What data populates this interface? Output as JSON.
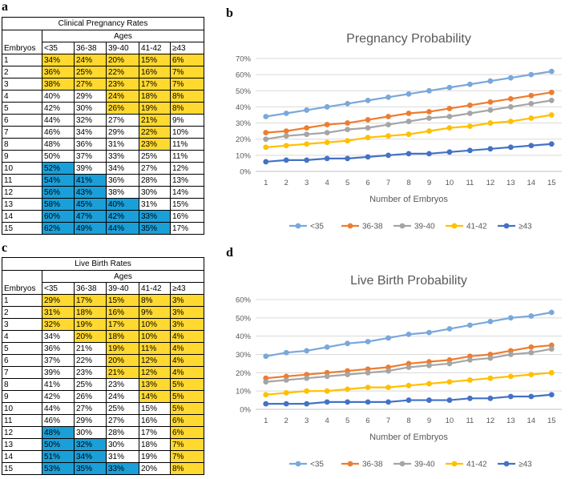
{
  "panels": {
    "a": "a",
    "b": "b",
    "c": "c",
    "d": "d"
  },
  "colors": {
    "yellow_cell": "#FFD92F",
    "blue_cell": "#1A9FD9",
    "series": [
      "#79A8DB",
      "#ED7D31",
      "#A5A5A5",
      "#FFC000",
      "#4472C4"
    ]
  },
  "table_a": {
    "title": "Clinical Pregnancy Rates",
    "ages_label": "Ages",
    "embryos_label": "Embryos",
    "age_headers": [
      "<35",
      "36-38",
      "39-40",
      "41-42",
      "≥43"
    ],
    "rows": [
      {
        "embryo": "1",
        "cells": [
          "34%",
          "24%",
          "20%",
          "15%",
          "6%"
        ],
        "colors": [
          "y",
          "y",
          "y",
          "y",
          "y"
        ]
      },
      {
        "embryo": "2",
        "cells": [
          "36%",
          "25%",
          "22%",
          "16%",
          "7%"
        ],
        "colors": [
          "y",
          "y",
          "y",
          "y",
          "y"
        ]
      },
      {
        "embryo": "3",
        "cells": [
          "38%",
          "27%",
          "23%",
          "17%",
          "7%"
        ],
        "colors": [
          "y",
          "y",
          "y",
          "y",
          "y"
        ]
      },
      {
        "embryo": "4",
        "cells": [
          "40%",
          "29%",
          "24%",
          "18%",
          "8%"
        ],
        "colors": [
          "",
          "",
          "y",
          "y",
          "y"
        ]
      },
      {
        "embryo": "5",
        "cells": [
          "42%",
          "30%",
          "26%",
          "19%",
          "8%"
        ],
        "colors": [
          "",
          "",
          "y",
          "y",
          "y"
        ]
      },
      {
        "embryo": "6",
        "cells": [
          "44%",
          "32%",
          "27%",
          "21%",
          "9%"
        ],
        "colors": [
          "",
          "",
          "",
          "y",
          ""
        ]
      },
      {
        "embryo": "7",
        "cells": [
          "46%",
          "34%",
          "29%",
          "22%",
          "10%"
        ],
        "colors": [
          "",
          "",
          "",
          "y",
          ""
        ]
      },
      {
        "embryo": "8",
        "cells": [
          "48%",
          "36%",
          "31%",
          "23%",
          "11%"
        ],
        "colors": [
          "",
          "",
          "",
          "y",
          ""
        ]
      },
      {
        "embryo": "9",
        "cells": [
          "50%",
          "37%",
          "33%",
          "25%",
          "11%"
        ],
        "colors": [
          "",
          "",
          "",
          "",
          ""
        ]
      },
      {
        "embryo": "10",
        "cells": [
          "52%",
          "39%",
          "34%",
          "27%",
          "12%"
        ],
        "colors": [
          "b",
          "",
          "",
          "",
          ""
        ]
      },
      {
        "embryo": "11",
        "cells": [
          "54%",
          "41%",
          "36%",
          "28%",
          "13%"
        ],
        "colors": [
          "b",
          "b",
          "",
          "",
          ""
        ]
      },
      {
        "embryo": "12",
        "cells": [
          "56%",
          "43%",
          "38%",
          "30%",
          "14%"
        ],
        "colors": [
          "b",
          "b",
          "",
          "",
          ""
        ]
      },
      {
        "embryo": "13",
        "cells": [
          "58%",
          "45%",
          "40%",
          "31%",
          "15%"
        ],
        "colors": [
          "b",
          "b",
          "b",
          "",
          ""
        ]
      },
      {
        "embryo": "14",
        "cells": [
          "60%",
          "47%",
          "42%",
          "33%",
          "16%"
        ],
        "colors": [
          "b",
          "b",
          "b",
          "b",
          ""
        ]
      },
      {
        "embryo": "15",
        "cells": [
          "62%",
          "49%",
          "44%",
          "35%",
          "17%"
        ],
        "colors": [
          "b",
          "b",
          "b",
          "b",
          ""
        ]
      }
    ]
  },
  "table_c": {
    "title": "Live Birth Rates",
    "ages_label": "Ages",
    "embryos_label": "Embryos",
    "age_headers": [
      "<35",
      "36-38",
      "39-40",
      "41-42",
      "≥43"
    ],
    "rows": [
      {
        "embryo": "1",
        "cells": [
          "29%",
          "17%",
          "15%",
          "8%",
          "3%"
        ],
        "colors": [
          "y",
          "y",
          "y",
          "y",
          "y"
        ]
      },
      {
        "embryo": "2",
        "cells": [
          "31%",
          "18%",
          "16%",
          "9%",
          "3%"
        ],
        "colors": [
          "y",
          "y",
          "y",
          "y",
          "y"
        ]
      },
      {
        "embryo": "3",
        "cells": [
          "32%",
          "19%",
          "17%",
          "10%",
          "3%"
        ],
        "colors": [
          "y",
          "y",
          "y",
          "y",
          "y"
        ]
      },
      {
        "embryo": "4",
        "cells": [
          "34%",
          "20%",
          "18%",
          "10%",
          "4%"
        ],
        "colors": [
          "",
          "y",
          "y",
          "y",
          "y"
        ]
      },
      {
        "embryo": "5",
        "cells": [
          "36%",
          "21%",
          "19%",
          "11%",
          "4%"
        ],
        "colors": [
          "",
          "",
          "y",
          "y",
          "y"
        ]
      },
      {
        "embryo": "6",
        "cells": [
          "37%",
          "22%",
          "20%",
          "12%",
          "4%"
        ],
        "colors": [
          "",
          "",
          "y",
          "y",
          "y"
        ]
      },
      {
        "embryo": "7",
        "cells": [
          "39%",
          "23%",
          "21%",
          "12%",
          "4%"
        ],
        "colors": [
          "",
          "",
          "y",
          "y",
          "y"
        ]
      },
      {
        "embryo": "8",
        "cells": [
          "41%",
          "25%",
          "23%",
          "13%",
          "5%"
        ],
        "colors": [
          "",
          "",
          "",
          "y",
          "y"
        ]
      },
      {
        "embryo": "9",
        "cells": [
          "42%",
          "26%",
          "24%",
          "14%",
          "5%"
        ],
        "colors": [
          "",
          "",
          "",
          "y",
          "y"
        ]
      },
      {
        "embryo": "10",
        "cells": [
          "44%",
          "27%",
          "25%",
          "15%",
          "5%"
        ],
        "colors": [
          "",
          "",
          "",
          "",
          "y"
        ]
      },
      {
        "embryo": "11",
        "cells": [
          "46%",
          "29%",
          "27%",
          "16%",
          "6%"
        ],
        "colors": [
          "",
          "",
          "",
          "",
          "y"
        ]
      },
      {
        "embryo": "12",
        "cells": [
          "48%",
          "30%",
          "28%",
          "17%",
          "6%"
        ],
        "colors": [
          "b",
          "",
          "",
          "",
          "y"
        ]
      },
      {
        "embryo": "13",
        "cells": [
          "50%",
          "32%",
          "30%",
          "18%",
          "7%"
        ],
        "colors": [
          "b",
          "b",
          "",
          "",
          "y"
        ]
      },
      {
        "embryo": "14",
        "cells": [
          "51%",
          "34%",
          "31%",
          "19%",
          "7%"
        ],
        "colors": [
          "b",
          "b",
          "",
          "",
          "y"
        ]
      },
      {
        "embryo": "15",
        "cells": [
          "53%",
          "35%",
          "33%",
          "20%",
          "8%"
        ],
        "colors": [
          "b",
          "b",
          "b",
          "",
          "y"
        ]
      }
    ]
  },
  "chart_data": [
    {
      "type": "line",
      "title": "Pregnancy Probability",
      "xlabel": "Number of Embryos",
      "ylabel": "",
      "x": [
        1,
        2,
        3,
        4,
        5,
        6,
        7,
        8,
        9,
        10,
        11,
        12,
        13,
        14,
        15
      ],
      "ylim": [
        0,
        70
      ],
      "yticks": [
        "0%",
        "10%",
        "20%",
        "30%",
        "40%",
        "50%",
        "60%",
        "70%"
      ],
      "grid": true,
      "legend": "bottom",
      "series": [
        {
          "name": "<35",
          "values": [
            34,
            36,
            38,
            40,
            42,
            44,
            46,
            48,
            50,
            52,
            54,
            56,
            58,
            60,
            62
          ]
        },
        {
          "name": "36-38",
          "values": [
            24,
            25,
            27,
            29,
            30,
            32,
            34,
            36,
            37,
            39,
            41,
            43,
            45,
            47,
            49
          ]
        },
        {
          "name": "39-40",
          "values": [
            20,
            22,
            23,
            24,
            26,
            27,
            29,
            31,
            33,
            34,
            36,
            38,
            40,
            42,
            44
          ]
        },
        {
          "name": "41-42",
          "values": [
            15,
            16,
            17,
            18,
            19,
            21,
            22,
            23,
            25,
            27,
            28,
            30,
            31,
            33,
            35
          ]
        },
        {
          "name": "≥43",
          "values": [
            6,
            7,
            7,
            8,
            8,
            9,
            10,
            11,
            11,
            12,
            13,
            14,
            15,
            16,
            17
          ]
        }
      ]
    },
    {
      "type": "line",
      "title": "Live Birth Probability",
      "xlabel": "Number of Embryos",
      "ylabel": "",
      "x": [
        1,
        2,
        3,
        4,
        5,
        6,
        7,
        8,
        9,
        10,
        11,
        12,
        13,
        14,
        15
      ],
      "ylim": [
        0,
        60
      ],
      "yticks": [
        "0%",
        "10%",
        "20%",
        "30%",
        "40%",
        "50%",
        "60%"
      ],
      "grid": true,
      "legend": "bottom",
      "series": [
        {
          "name": "<35",
          "values": [
            29,
            31,
            32,
            34,
            36,
            37,
            39,
            41,
            42,
            44,
            46,
            48,
            50,
            51,
            53
          ]
        },
        {
          "name": "36-38",
          "values": [
            17,
            18,
            19,
            20,
            21,
            22,
            23,
            25,
            26,
            27,
            29,
            30,
            32,
            34,
            35
          ]
        },
        {
          "name": "39-40",
          "values": [
            15,
            16,
            17,
            18,
            19,
            20,
            21,
            23,
            24,
            25,
            27,
            28,
            30,
            31,
            33
          ]
        },
        {
          "name": "41-42",
          "values": [
            8,
            9,
            10,
            10,
            11,
            12,
            12,
            13,
            14,
            15,
            16,
            17,
            18,
            19,
            20
          ]
        },
        {
          "name": "≥43",
          "values": [
            3,
            3,
            3,
            4,
            4,
            4,
            4,
            5,
            5,
            5,
            6,
            6,
            7,
            7,
            8
          ]
        }
      ]
    }
  ]
}
